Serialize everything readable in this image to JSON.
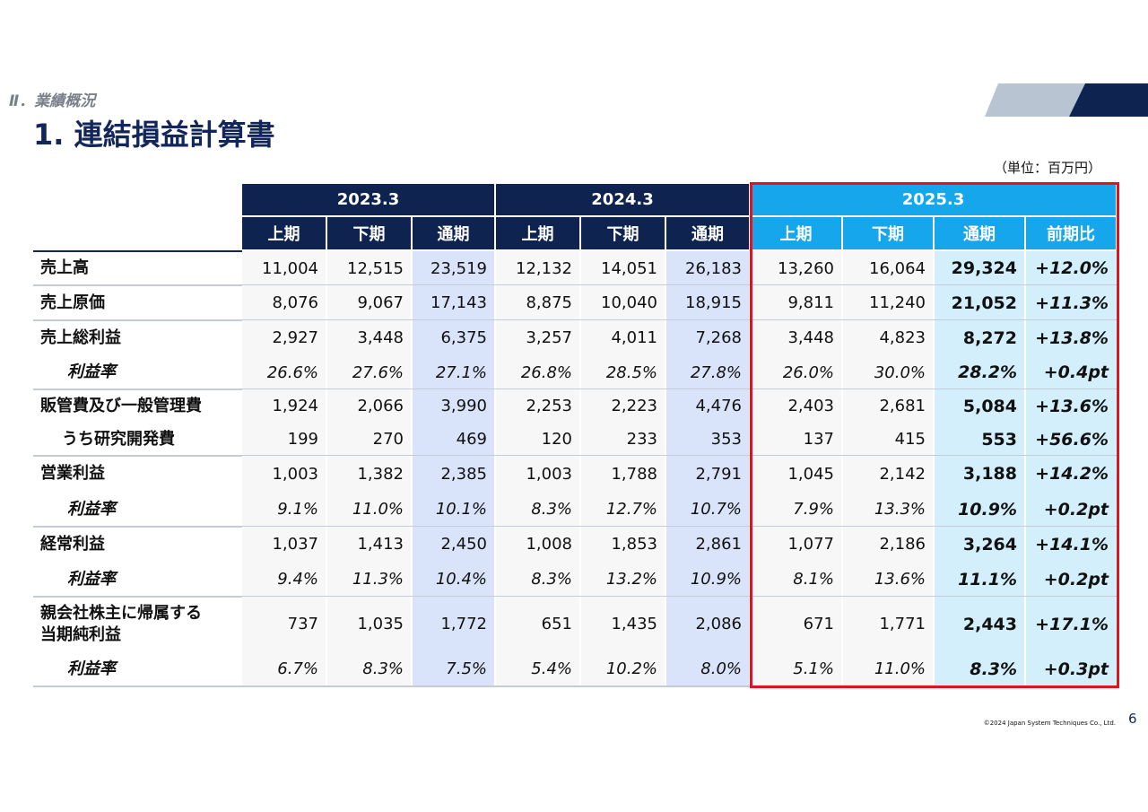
{
  "header": {
    "section": "Ⅱ．業績概況",
    "title": "1. 連結損益計算書",
    "unit": "（単位：百万円）"
  },
  "table": {
    "years": [
      "2023.3",
      "2024.3",
      "2025.3"
    ],
    "columns": [
      "上期",
      "下期",
      "通期",
      "上期",
      "下期",
      "通期",
      "上期",
      "下期",
      "通期",
      "前期比"
    ],
    "rows": [
      {
        "label": [
          "売上高"
        ],
        "cells": [
          "11,004",
          "12,515",
          "23,519",
          "12,132",
          "14,051",
          "26,183",
          "13,260",
          "16,064",
          "29,324",
          "+12.0%"
        ]
      },
      {
        "label": [
          "売上原価"
        ],
        "cells": [
          "8,076",
          "9,067",
          "17,143",
          "8,875",
          "10,040",
          "18,915",
          "9,811",
          "11,240",
          "21,052",
          "+11.3%"
        ]
      },
      {
        "label": [
          "売上総利益"
        ],
        "cells": [
          "2,927",
          "3,448",
          "6,375",
          "3,257",
          "4,011",
          "7,268",
          "3,448",
          "4,823",
          "8,272",
          "+13.8%"
        ]
      },
      {
        "label": [
          "利益率"
        ],
        "cells": [
          "26.6%",
          "27.6%",
          "27.1%",
          "26.8%",
          "28.5%",
          "27.8%",
          "26.0%",
          "30.0%",
          "28.2%",
          "+0.4pt"
        ]
      },
      {
        "label": [
          "販管費及び一般管理費"
        ],
        "cells": [
          "1,924",
          "2,066",
          "3,990",
          "2,253",
          "2,223",
          "4,476",
          "2,403",
          "2,681",
          "5,084",
          "+13.6%"
        ]
      },
      {
        "label": [
          "うち研究開発費"
        ],
        "cells": [
          "199",
          "270",
          "469",
          "120",
          "233",
          "353",
          "137",
          "415",
          "553",
          "+56.6%"
        ]
      },
      {
        "label": [
          "営業利益"
        ],
        "cells": [
          "1,003",
          "1,382",
          "2,385",
          "1,003",
          "1,788",
          "2,791",
          "1,045",
          "2,142",
          "3,188",
          "+14.2%"
        ]
      },
      {
        "label": [
          "利益率"
        ],
        "cells": [
          "9.1%",
          "11.0%",
          "10.1%",
          "8.3%",
          "12.7%",
          "10.7%",
          "7.9%",
          "13.3%",
          "10.9%",
          "+0.2pt"
        ]
      },
      {
        "label": [
          "経常利益"
        ],
        "cells": [
          "1,037",
          "1,413",
          "2,450",
          "1,008",
          "1,853",
          "2,861",
          "1,077",
          "2,186",
          "3,264",
          "+14.1%"
        ]
      },
      {
        "label": [
          "利益率"
        ],
        "cells": [
          "9.4%",
          "11.3%",
          "10.4%",
          "8.3%",
          "13.2%",
          "10.9%",
          "8.1%",
          "13.6%",
          "11.1%",
          "+0.2pt"
        ]
      },
      {
        "label": [
          "親会社株主に帰属する",
          "当期純利益"
        ],
        "cells": [
          "737",
          "1,035",
          "1,772",
          "651",
          "1,435",
          "2,086",
          "671",
          "1,771",
          "2,443",
          "+17.1%"
        ]
      },
      {
        "label": [
          "利益率"
        ],
        "cells": [
          "6.7%",
          "8.3%",
          "7.5%",
          "5.4%",
          "10.2%",
          "8.0%",
          "5.1%",
          "11.0%",
          "8.3%",
          "+0.3pt"
        ]
      }
    ]
  },
  "footer": {
    "copyright": "©2024 Japan System Techniques Co., Ltd.",
    "page": "6"
  }
}
